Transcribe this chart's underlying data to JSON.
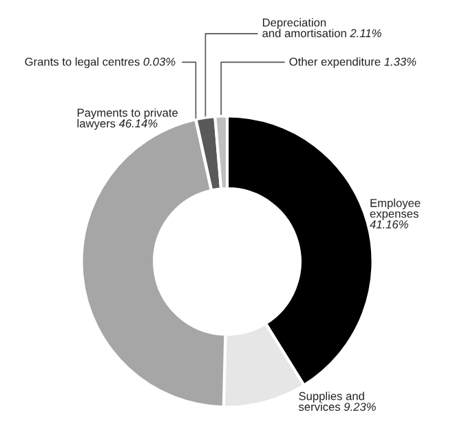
{
  "chart_data": {
    "type": "donut",
    "categories": [
      "Employee expenses",
      "Supplies and services",
      "Payments to private lawyers",
      "Grants to legal centres",
      "Depreciation and amortisation",
      "Other expenditure"
    ],
    "values": [
      41.16,
      9.23,
      46.14,
      0.03,
      2.11,
      1.33
    ],
    "colors": [
      "#000000",
      "#e6e6e6",
      "#a6a6a6",
      "#808080",
      "#595959",
      "#bfbfbf"
    ],
    "value_labels": [
      "41.16%",
      "9.23%",
      "46.14%",
      "0.03%",
      "2.11%",
      "1.33%"
    ]
  }
}
